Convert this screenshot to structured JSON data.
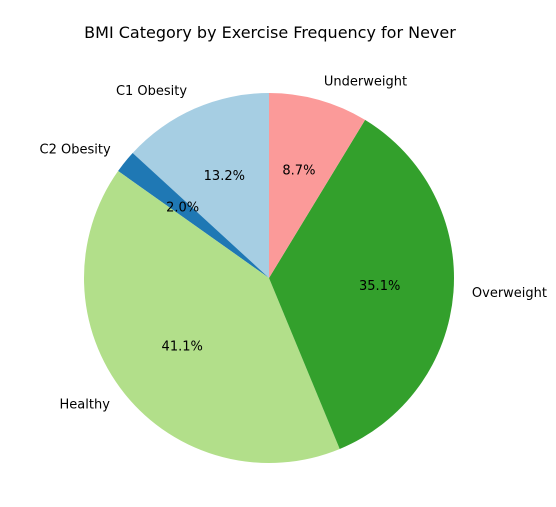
{
  "chart_data": {
    "type": "pie",
    "title": "BMI Category by Exercise Frequency for Never",
    "start_angle_deg": 90,
    "direction": "counterclockwise",
    "slices": [
      {
        "label": "C1 Obesity",
        "value": 13.2,
        "pct_label": "13.2%",
        "color": "#a6cee3"
      },
      {
        "label": "C2 Obesity",
        "value": 2.0,
        "pct_label": "2.0%",
        "color": "#1f78b4"
      },
      {
        "label": "Healthy",
        "value": 41.1,
        "pct_label": "41.1%",
        "color": "#b2df8a"
      },
      {
        "label": "Overweight",
        "value": 35.1,
        "pct_label": "35.1%",
        "color": "#33a02c"
      },
      {
        "label": "Underweight",
        "value": 8.7,
        "pct_label": "8.7%",
        "color": "#fb9a99"
      }
    ]
  }
}
